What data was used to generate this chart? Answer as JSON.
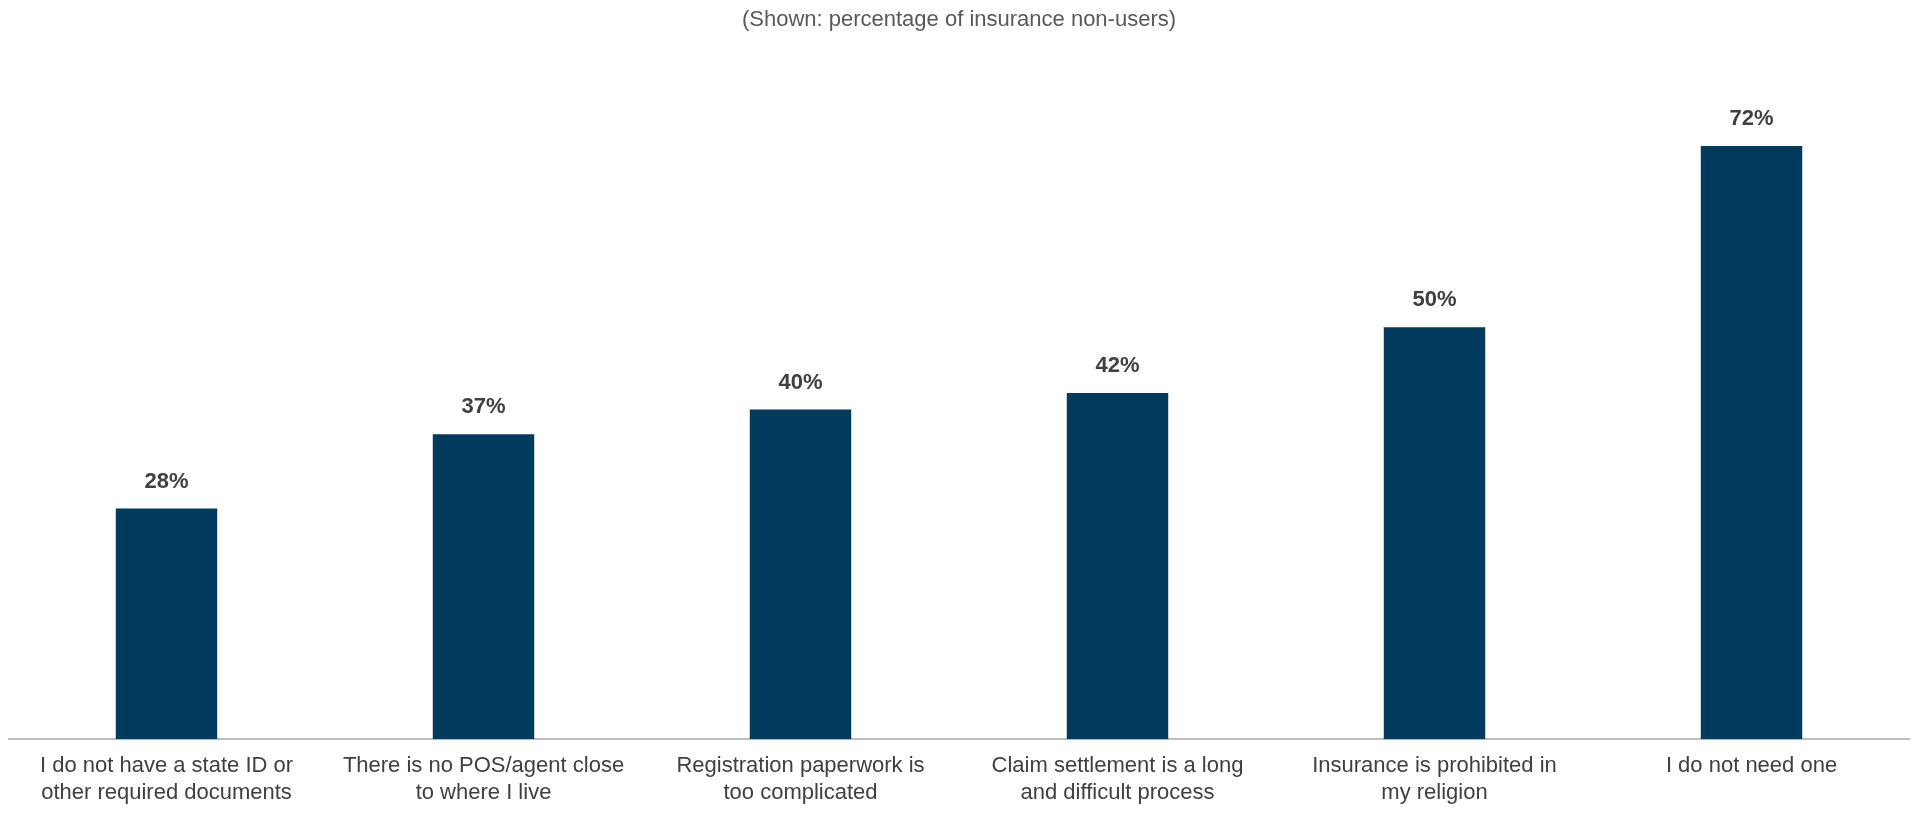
{
  "chart_data": {
    "type": "bar",
    "subtitle": "(Shown: percentage of insurance non-users)",
    "categories": [
      "I do not have a state ID or other required documents",
      "There is no POS/agent close to where I live",
      "Registration paperwork is too complicated",
      "Claim settlement is a long and difficult process",
      "Insurance is prohibited in my religion",
      "I do not need one"
    ],
    "values": [
      28,
      37,
      40,
      42,
      50,
      72
    ],
    "value_labels": [
      "28%",
      "37%",
      "40%",
      "42%",
      "50%",
      "72%"
    ],
    "color": "#003a5d",
    "tick_labels": "x"
  }
}
